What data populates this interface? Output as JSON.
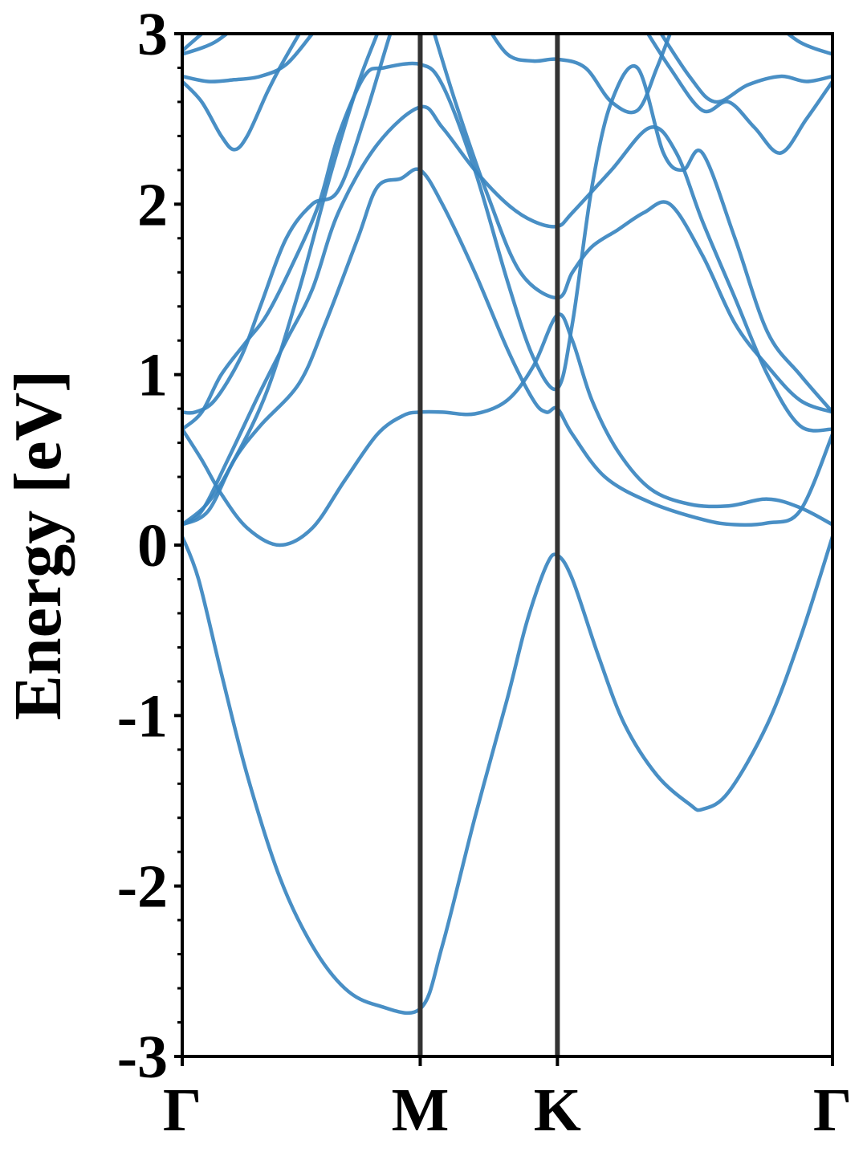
{
  "chart_data": {
    "type": "line",
    "title": "",
    "xlabel": "",
    "ylabel": "Energy [eV]",
    "ylim": [
      -3,
      3
    ],
    "yticks": [
      "3",
      "2",
      "1",
      "0",
      "-1",
      "-2",
      "-3"
    ],
    "ytick_values": [
      3,
      2,
      1,
      0,
      -1,
      -2,
      -3
    ],
    "x_range": [
      0,
      1
    ],
    "high_symmetry_points": [
      {
        "label": "Γ",
        "x": 0.0
      },
      {
        "label": "M",
        "x": 0.366
      },
      {
        "label": "K",
        "x": 0.577
      },
      {
        "label": "Γ",
        "x": 1.0
      }
    ],
    "line_color": "#3a86c0",
    "divider_color": "#333333",
    "grid": false,
    "series": [
      {
        "values": [
          [
            0.0,
            0.05
          ],
          [
            0.025,
            -0.2
          ],
          [
            0.06,
            -0.75
          ],
          [
            0.1,
            -1.35
          ],
          [
            0.15,
            -1.95
          ],
          [
            0.2,
            -2.35
          ],
          [
            0.25,
            -2.6
          ],
          [
            0.3,
            -2.7
          ],
          [
            0.366,
            -2.72
          ],
          [
            0.4,
            -2.35
          ],
          [
            0.45,
            -1.6
          ],
          [
            0.5,
            -0.9
          ],
          [
            0.53,
            -0.45
          ],
          [
            0.56,
            -0.12
          ],
          [
            0.577,
            -0.06
          ],
          [
            0.6,
            -0.2
          ],
          [
            0.64,
            -0.65
          ],
          [
            0.68,
            -1.05
          ],
          [
            0.73,
            -1.35
          ],
          [
            0.78,
            -1.52
          ],
          [
            0.8,
            -1.55
          ],
          [
            0.84,
            -1.45
          ],
          [
            0.9,
            -1.05
          ],
          [
            0.95,
            -0.55
          ],
          [
            1.0,
            0.05
          ]
        ]
      },
      {
        "values": [
          [
            0.0,
            0.68
          ],
          [
            0.03,
            0.5
          ],
          [
            0.06,
            0.3
          ],
          [
            0.1,
            0.1
          ],
          [
            0.15,
            0.0
          ],
          [
            0.2,
            0.1
          ],
          [
            0.25,
            0.38
          ],
          [
            0.3,
            0.65
          ],
          [
            0.34,
            0.76
          ],
          [
            0.366,
            0.78
          ],
          [
            0.4,
            0.78
          ],
          [
            0.45,
            0.77
          ],
          [
            0.5,
            0.85
          ],
          [
            0.54,
            1.05
          ],
          [
            0.577,
            1.35
          ],
          [
            0.6,
            1.2
          ],
          [
            0.63,
            0.85
          ],
          [
            0.67,
            0.55
          ],
          [
            0.72,
            0.33
          ],
          [
            0.78,
            0.24
          ],
          [
            0.84,
            0.23
          ],
          [
            0.9,
            0.27
          ],
          [
            0.95,
            0.22
          ],
          [
            1.0,
            0.12
          ]
        ]
      },
      {
        "values": [
          [
            0.0,
            0.12
          ],
          [
            0.04,
            0.2
          ],
          [
            0.08,
            0.5
          ],
          [
            0.12,
            0.7
          ],
          [
            0.18,
            0.95
          ],
          [
            0.22,
            1.3
          ],
          [
            0.27,
            1.8
          ],
          [
            0.3,
            2.1
          ],
          [
            0.336,
            2.15
          ],
          [
            0.366,
            2.2
          ],
          [
            0.4,
            2.0
          ],
          [
            0.45,
            1.6
          ],
          [
            0.5,
            1.15
          ],
          [
            0.54,
            0.85
          ],
          [
            0.56,
            0.78
          ],
          [
            0.577,
            0.8
          ],
          [
            0.6,
            0.65
          ],
          [
            0.65,
            0.4
          ],
          [
            0.72,
            0.25
          ],
          [
            0.8,
            0.15
          ],
          [
            0.85,
            0.12
          ],
          [
            0.9,
            0.13
          ],
          [
            0.95,
            0.2
          ],
          [
            1.0,
            0.65
          ]
        ]
      },
      {
        "values": [
          [
            0.0,
            0.12
          ],
          [
            0.03,
            0.2
          ],
          [
            0.07,
            0.5
          ],
          [
            0.12,
            0.9
          ],
          [
            0.16,
            1.2
          ],
          [
            0.2,
            1.5
          ],
          [
            0.24,
            1.95
          ],
          [
            0.3,
            2.35
          ],
          [
            0.366,
            2.57
          ],
          [
            0.4,
            2.45
          ],
          [
            0.45,
            2.2
          ],
          [
            0.5,
            2.0
          ],
          [
            0.54,
            1.9
          ],
          [
            0.577,
            1.87
          ],
          [
            0.6,
            1.95
          ],
          [
            0.66,
            2.2
          ],
          [
            0.72,
            2.45
          ],
          [
            0.76,
            2.3
          ],
          [
            0.8,
            1.9
          ],
          [
            0.85,
            1.45
          ],
          [
            0.9,
            1.0
          ],
          [
            0.95,
            0.7
          ],
          [
            1.0,
            0.68
          ]
        ]
      },
      {
        "values": [
          [
            0.0,
            0.68
          ],
          [
            0.03,
            0.78
          ],
          [
            0.06,
            1.0
          ],
          [
            0.1,
            1.2
          ],
          [
            0.13,
            1.35
          ],
          [
            0.17,
            1.65
          ],
          [
            0.21,
            2.0
          ],
          [
            0.24,
            2.4
          ],
          [
            0.28,
            2.75
          ],
          [
            0.31,
            2.8
          ],
          [
            0.366,
            2.82
          ],
          [
            0.4,
            2.7
          ],
          [
            0.45,
            2.2
          ],
          [
            0.5,
            1.55
          ],
          [
            0.54,
            1.1
          ],
          [
            0.577,
            0.92
          ],
          [
            0.6,
            1.3
          ],
          [
            0.63,
            2.1
          ],
          [
            0.66,
            2.6
          ],
          [
            0.7,
            2.8
          ],
          [
            0.74,
            2.3
          ],
          [
            0.77,
            2.2
          ],
          [
            0.8,
            2.3
          ],
          [
            0.85,
            1.8
          ],
          [
            0.9,
            1.25
          ],
          [
            0.95,
            1.0
          ],
          [
            1.0,
            0.78
          ]
        ]
      },
      {
        "values": [
          [
            0.0,
            0.78
          ],
          [
            0.02,
            0.78
          ],
          [
            0.05,
            0.85
          ],
          [
            0.09,
            1.1
          ],
          [
            0.12,
            1.4
          ],
          [
            0.16,
            1.8
          ],
          [
            0.2,
            2.0
          ],
          [
            0.24,
            2.08
          ],
          [
            0.28,
            2.5
          ],
          [
            0.32,
            3.0
          ],
          [
            0.34,
            3.2
          ]
        ]
      },
      {
        "values": [
          [
            0.0,
            0.12
          ],
          [
            0.04,
            0.25
          ],
          [
            0.08,
            0.5
          ],
          [
            0.13,
            0.9
          ],
          [
            0.18,
            1.5
          ],
          [
            0.23,
            2.2
          ],
          [
            0.27,
            2.7
          ],
          [
            0.3,
            3.0
          ],
          [
            0.31,
            3.1
          ]
        ]
      },
      {
        "values": [
          [
            0.38,
            3.1
          ],
          [
            0.42,
            2.6
          ],
          [
            0.47,
            2.05
          ],
          [
            0.52,
            1.6
          ],
          [
            0.577,
            1.45
          ],
          [
            0.6,
            1.6
          ],
          [
            0.63,
            1.75
          ],
          [
            0.67,
            1.85
          ],
          [
            0.71,
            1.95
          ],
          [
            0.75,
            2.0
          ],
          [
            0.8,
            1.7
          ],
          [
            0.85,
            1.3
          ],
          [
            0.9,
            1.05
          ],
          [
            0.95,
            0.85
          ],
          [
            1.0,
            0.78
          ]
        ]
      },
      {
        "values": [
          [
            0.0,
            2.72
          ],
          [
            0.03,
            2.6
          ],
          [
            0.06,
            2.4
          ],
          [
            0.08,
            2.32
          ],
          [
            0.1,
            2.4
          ],
          [
            0.13,
            2.65
          ],
          [
            0.15,
            2.8
          ],
          [
            0.18,
            3.0
          ]
        ]
      },
      {
        "values": [
          [
            0.0,
            2.75
          ],
          [
            0.04,
            2.72
          ],
          [
            0.08,
            2.73
          ],
          [
            0.12,
            2.75
          ],
          [
            0.16,
            2.82
          ],
          [
            0.2,
            3.0
          ]
        ]
      },
      {
        "values": [
          [
            0.0,
            2.88
          ],
          [
            0.05,
            2.95
          ],
          [
            0.1,
            3.1
          ]
        ]
      },
      {
        "values": [
          [
            0.0,
            2.9
          ],
          [
            0.03,
            3.0
          ],
          [
            0.06,
            3.1
          ]
        ]
      },
      {
        "values": [
          [
            0.46,
            3.1
          ],
          [
            0.5,
            2.88
          ],
          [
            0.54,
            2.84
          ],
          [
            0.577,
            2.85
          ],
          [
            0.62,
            2.8
          ],
          [
            0.66,
            2.6
          ],
          [
            0.7,
            2.55
          ],
          [
            0.73,
            2.8
          ],
          [
            0.76,
            3.1
          ]
        ]
      },
      {
        "values": [
          [
            0.7,
            3.1
          ],
          [
            0.75,
            2.8
          ],
          [
            0.8,
            2.55
          ],
          [
            0.84,
            2.6
          ],
          [
            0.88,
            2.45
          ],
          [
            0.92,
            2.3
          ],
          [
            0.96,
            2.5
          ],
          [
            1.0,
            2.72
          ]
        ]
      },
      {
        "values": [
          [
            0.72,
            3.1
          ],
          [
            0.78,
            2.75
          ],
          [
            0.82,
            2.6
          ],
          [
            0.87,
            2.7
          ],
          [
            0.92,
            2.75
          ],
          [
            0.96,
            2.72
          ],
          [
            1.0,
            2.75
          ]
        ]
      },
      {
        "values": [
          [
            0.9,
            3.1
          ],
          [
            0.95,
            2.95
          ],
          [
            1.0,
            2.88
          ]
        ]
      }
    ]
  }
}
